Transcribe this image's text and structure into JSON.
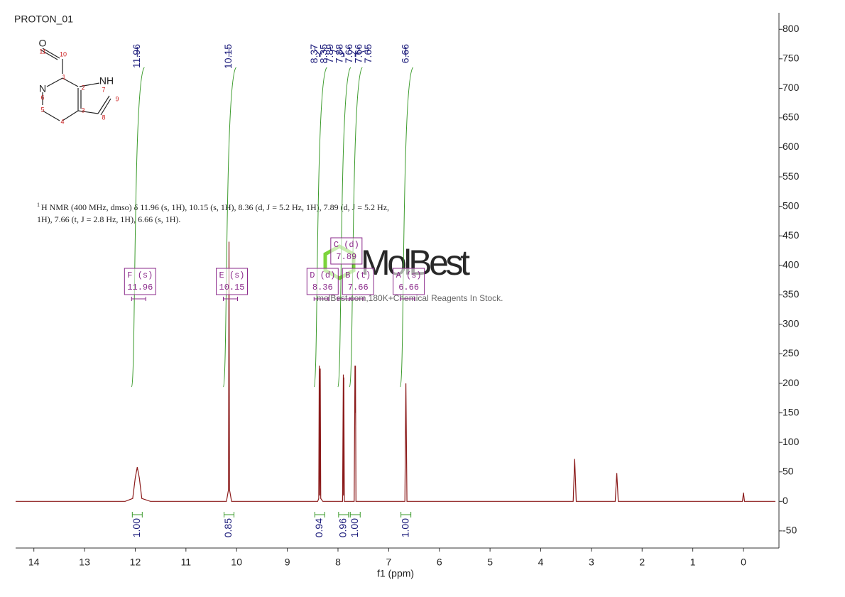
{
  "chart_data": {
    "type": "line",
    "title": "PROTON_01",
    "x_label": "f1 (ppm)",
    "xlim": [
      14.36,
      -0.63
    ],
    "ylim": [
      -79,
      828
    ],
    "xticks": [
      14,
      13,
      12,
      11,
      10,
      9,
      8,
      7,
      6,
      5,
      4,
      3,
      2,
      1,
      0
    ],
    "yticks": [
      -50,
      0,
      50,
      100,
      150,
      200,
      250,
      300,
      350,
      400,
      450,
      500,
      550,
      600,
      650,
      700,
      750,
      800
    ],
    "color": "#8b1a1a",
    "x": [
      14.36,
      12.2,
      12.05,
      12.0,
      11.96,
      11.92,
      11.87,
      11.7,
      10.2,
      10.16,
      10.15,
      10.14,
      10.1,
      8.4,
      8.38,
      8.37,
      8.36,
      8.35,
      8.34,
      8.3,
      7.91,
      7.895,
      7.89,
      7.885,
      7.875,
      7.68,
      7.665,
      7.66,
      7.655,
      7.645,
      6.68,
      6.66,
      6.64,
      3.36,
      3.33,
      3.3,
      2.53,
      2.5,
      2.47,
      0.02,
      0,
      -0.02,
      -0.63
    ],
    "values": [
      0,
      0,
      5,
      40,
      58,
      40,
      5,
      0,
      0,
      20,
      440,
      20,
      0,
      0,
      5,
      230,
      10,
      225,
      5,
      0,
      0,
      215,
      10,
      210,
      0,
      0,
      230,
      150,
      230,
      0,
      0,
      200,
      0,
      0,
      72,
      0,
      0,
      48,
      0,
      0,
      15,
      0,
      0
    ],
    "peak_labels": [
      11.96,
      10.15,
      8.37,
      8.35,
      7.89,
      7.88,
      7.66,
      7.66,
      7.65,
      6.66
    ],
    "integrals": {
      "x": [
        11.96,
        10.15,
        8.36,
        7.89,
        7.66,
        6.66
      ],
      "values": [
        1,
        0.85,
        0.94,
        0.96,
        1,
        1
      ],
      "value_labels": [
        "1.00",
        "0.85",
        "0.94",
        "0.96",
        "1.00",
        "1.00"
      ]
    },
    "multiplets": {
      "names": [
        "F (s)",
        "E (s)",
        "D (d)",
        "C (d)",
        "B (t)",
        "A (s)"
      ],
      "shifts": [
        11.96,
        10.15,
        8.36,
        7.89,
        7.66,
        6.66
      ]
    },
    "description": {
      "sup": "1",
      "lines": [
        "H NMR (400 MHz, dmso) δ 11.96 (s, 1H), 10.15 (s, 1H), 8.36 (d, J = 5.2 Hz, 1H), 7.89 (d, J = 5.2 Hz,",
        "1H), 7.66 (t, J = 2.8 Hz, 1H), 6.66 (s, 1H)."
      ]
    },
    "structure": {
      "atoms": [
        "O",
        "11",
        "10",
        "1",
        "N",
        "6",
        "5",
        "4",
        "3",
        "2",
        "NH",
        "7",
        "8",
        "9"
      ]
    },
    "watermark": {
      "logo": "MolBest",
      "tagline": "molBest.com,180K+Chemical Reagents In Stock."
    }
  }
}
